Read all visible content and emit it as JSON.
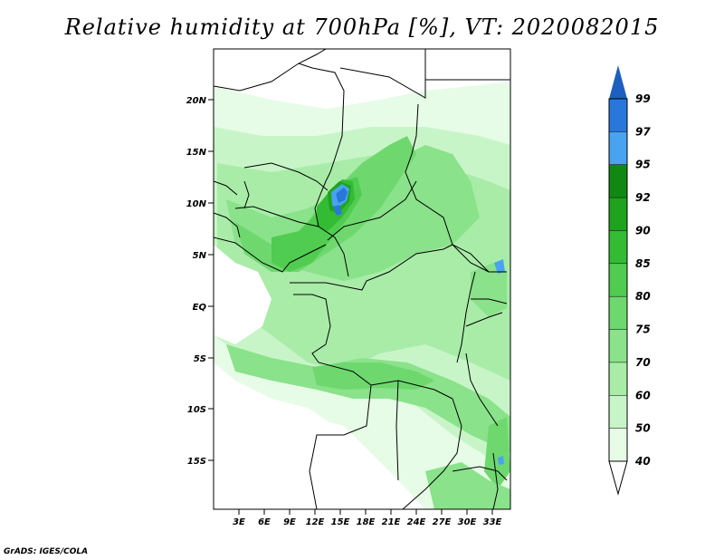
{
  "title": "Relative humidity at 700hPa [%], VT: 2020082015",
  "credit": "GrADS: IGES/COLA",
  "map": {
    "lat_labels": [
      "20N",
      "15N",
      "10N",
      "5N",
      "EQ",
      "5S",
      "10S",
      "15S"
    ],
    "lon_labels": [
      "3E",
      "6E",
      "9E",
      "12E",
      "15E",
      "18E",
      "21E",
      "24E",
      "27E",
      "30E",
      "33E"
    ]
  },
  "colorbar": {
    "levels": [
      "40",
      "50",
      "60",
      "70",
      "75",
      "80",
      "85",
      "90",
      "92",
      "95",
      "97",
      "99"
    ],
    "colors": [
      "#ffffff",
      "#e6fce6",
      "#c8f5c8",
      "#a8eca8",
      "#8ae28a",
      "#6ed86e",
      "#50cc50",
      "#34bb34",
      "#1fa31f",
      "#118811",
      "#4aa3f0",
      "#2878dc",
      "#1c5fc0"
    ]
  }
}
